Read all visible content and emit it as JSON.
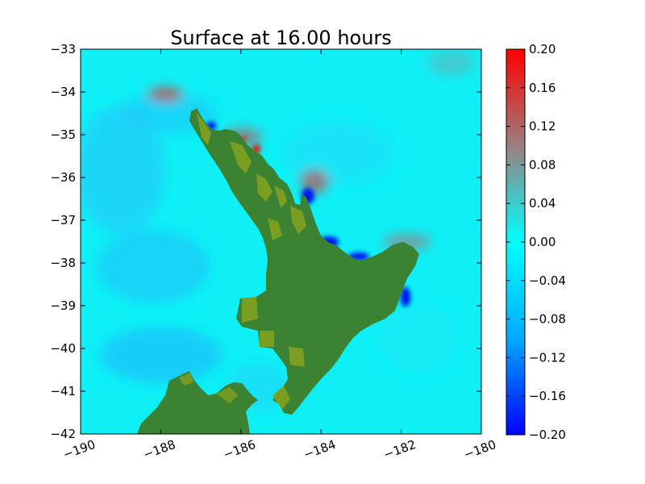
{
  "chart_data": {
    "type": "heatmap",
    "title": "Surface at 16.00 hours",
    "xlabel": "",
    "ylabel": "",
    "xlim": [
      -190,
      -180
    ],
    "ylim": [
      -42,
      -33
    ],
    "xticks": [
      "−190",
      "−188",
      "−186",
      "−184",
      "−182",
      "−180"
    ],
    "xtick_values": [
      -190,
      -188,
      -186,
      -184,
      -182,
      -180
    ],
    "yticks": [
      "−33",
      "−34",
      "−35",
      "−36",
      "−37",
      "−38",
      "−39",
      "−40",
      "−41",
      "−42"
    ],
    "ytick_values": [
      -33,
      -34,
      -35,
      -36,
      -37,
      -38,
      -39,
      -40,
      -41,
      -42
    ],
    "grid": false,
    "colorbar": {
      "min": -0.2,
      "max": 0.2,
      "ticks": [
        "0.20",
        "0.16",
        "0.12",
        "0.08",
        "0.04",
        "0.00",
        "−0.04",
        "−0.08",
        "−0.12",
        "−0.16",
        "−0.20"
      ],
      "tick_values": [
        0.2,
        0.16,
        0.12,
        0.08,
        0.04,
        0.0,
        -0.04,
        -0.08,
        -0.12,
        -0.16,
        -0.2
      ],
      "colors": [
        "#0000ff",
        "#00aaff",
        "#00ffff",
        "#9b7f7f",
        "#ff0000"
      ]
    },
    "colors": {
      "sea": "#0ef0f6",
      "sea_low": "#17c4f8",
      "land": "#3b8233",
      "land_high": "#86a31e",
      "negative_anomaly": "#0012ee",
      "positive_anomaly": "#cc3333"
    }
  }
}
